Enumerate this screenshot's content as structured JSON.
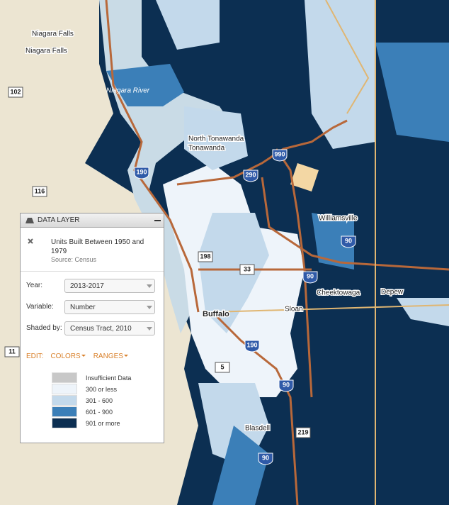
{
  "map_labels": [
    "Niagara Falls",
    "Niagara Falls",
    "102",
    "Niagara River",
    "North Tonawanda",
    "Tonawanda",
    "190",
    "290",
    "990",
    "116",
    "Williamsville",
    "90",
    "198",
    "33",
    "90",
    "Cheektowaga",
    "Depew",
    "Buffalo",
    "Sloan",
    "190",
    "11",
    "5",
    "90",
    "Blasdell",
    "219",
    "90"
  ],
  "panel": {
    "header": "DATA LAYER",
    "layer_title": "Units Built Between 1950 and 1979",
    "source": "Source: Census",
    "fields": [
      {
        "label": "Year:",
        "value": "2013-2017"
      },
      {
        "label": "Variable:",
        "value": "Number"
      },
      {
        "label": "Shaded by:",
        "value": "Census Tract, 2010"
      }
    ],
    "edit_label": "EDIT:",
    "edit_buttons": [
      "COLORS",
      "RANGES"
    ],
    "legend": [
      {
        "label": "Insufficient Data",
        "color": "#c8c8c8"
      },
      {
        "label": "300 or less",
        "color": "#eef4fa"
      },
      {
        "label": "301 - 600",
        "color": "#c3d9eb"
      },
      {
        "label": "601 - 900",
        "color": "#3b7fb8"
      },
      {
        "label": "901 or more",
        "color": "#0c2f52"
      }
    ]
  }
}
